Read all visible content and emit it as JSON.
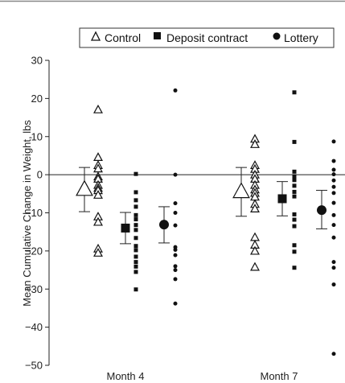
{
  "chart_data": {
    "type": "scatter",
    "title": "",
    "ylabel": "Mean Cumulative Change in Weight, lbs",
    "xlabel": "",
    "ylim": [
      -50,
      30
    ],
    "yticks": [
      30,
      20,
      10,
      0,
      -10,
      -20,
      -30,
      -40,
      -50
    ],
    "ytick_labels": [
      "30",
      "20",
      "10",
      "0",
      "−10",
      "−20",
      "−30",
      "−40",
      "−50"
    ],
    "categories": [
      "Month 4",
      "Month 7"
    ],
    "legend": {
      "placement": "top",
      "entries": [
        {
          "label": "Control",
          "marker": "open-triangle"
        },
        {
          "label": "Deposit contract",
          "marker": "filled-square"
        },
        {
          "label": "Lottery",
          "marker": "filled-circle"
        }
      ]
    },
    "zero_line": true,
    "groups": [
      {
        "category": "Month 4",
        "series": "Control",
        "marker": "open-triangle",
        "mean": -3.9,
        "ci": [
          -9.7,
          1.9
        ],
        "points": [
          17,
          4.5,
          2.4,
          1.5,
          -0.6,
          -1.2,
          -2.8,
          -3.6,
          -4.2,
          -5.4,
          -11.1,
          -12.5,
          -19.5,
          -20.6
        ]
      },
      {
        "category": "Month 4",
        "series": "Deposit contract",
        "marker": "filled-square",
        "mean": -14.0,
        "ci": [
          -18.1,
          -9.9
        ],
        "points": [
          0.2,
          -4.6,
          -6.7,
          -8.4,
          -10.6,
          -11.7,
          -13.2,
          -14.5,
          -16.6,
          -18.7,
          -19.8,
          -21.5,
          -22.9,
          -24.1,
          -25.5,
          -30.1
        ]
      },
      {
        "category": "Month 4",
        "series": "Lottery",
        "marker": "filled-circle",
        "mean": -13.1,
        "ci": [
          -17.9,
          -8.4
        ],
        "points": [
          22.1,
          0,
          -7.5,
          -10.0,
          -13.3,
          -19.0,
          -19.7,
          -21.1,
          -24.0,
          -25.0,
          -27.4,
          -33.8
        ]
      },
      {
        "category": "Month 7",
        "series": "Control",
        "marker": "open-triangle",
        "mean": -4.5,
        "ci": [
          -10.9,
          1.9
        ],
        "points": [
          9.3,
          7.9,
          2.4,
          1.4,
          -0.1,
          -1.2,
          -2.8,
          -4.0,
          -4.9,
          -5.9,
          -7.8,
          -9.0,
          -16.5,
          -18.5,
          -20.1,
          -24.3
        ]
      },
      {
        "category": "Month 7",
        "series": "Deposit contract",
        "marker": "filled-square",
        "mean": -6.3,
        "ci": [
          -10.8,
          -1.8
        ],
        "points": [
          21.6,
          8.6,
          0.8,
          -0.4,
          -1.4,
          -2.9,
          -4.5,
          -5.7,
          -10.4,
          -11.8,
          -13.5,
          -18.5,
          -20.2,
          -24.4
        ]
      },
      {
        "category": "Month 7",
        "series": "Lottery",
        "marker": "filled-circle",
        "mean": -9.3,
        "ci": [
          -14.2,
          -4.1
        ],
        "points": [
          8.7,
          3.6,
          1.3,
          0.1,
          -1.5,
          -3.2,
          -4.8,
          -7.4,
          -10.6,
          -13.2,
          -16.5,
          -22.9,
          -24.4,
          -28.8,
          -47.0
        ]
      }
    ]
  }
}
